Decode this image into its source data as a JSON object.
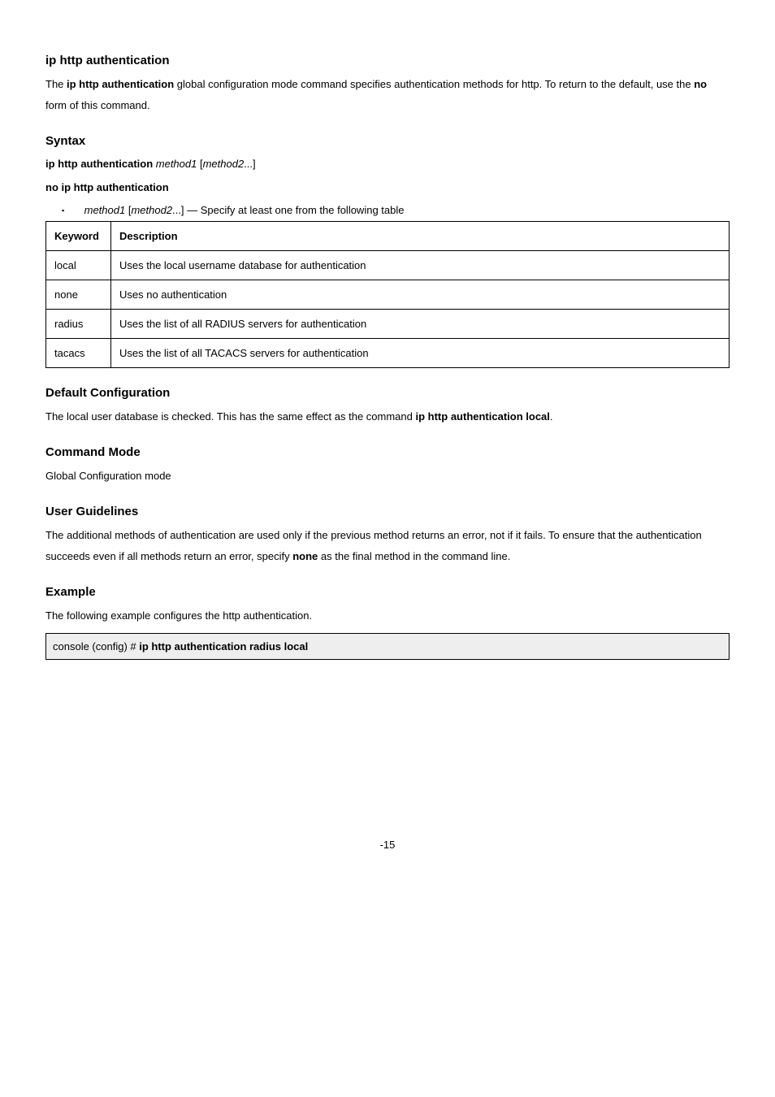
{
  "heading": "ip http authentication",
  "intro": {
    "pre1": "The ",
    "cmd": "ip http authentication",
    "post1": " global configuration mode command specifies authentication methods for http. To return to the default, use the ",
    "no": "no",
    "post2": " form of this command."
  },
  "sections": {
    "syntax": "Syntax",
    "default": "Default Configuration",
    "mode": "Command Mode",
    "guidelines": "User Guidelines",
    "example": "Example"
  },
  "syntax": {
    "line1_cmd": "ip http authentication ",
    "line1_arg1": "method1",
    "line1_open": " [",
    "line1_arg2": "method2",
    "line1_close": "...]",
    "line2": "no ip http authentication"
  },
  "param": {
    "arg1": "method1",
    "open": " [",
    "arg2": "method2",
    "close": "...] — Specify at least one from the following table"
  },
  "table": {
    "h1": "Keyword",
    "h2": "Description",
    "rows": [
      {
        "k": "local",
        "d": "Uses the local username database for authentication"
      },
      {
        "k": "none",
        "d": "Uses no authentication"
      },
      {
        "k": "radius",
        "d": "Uses the list of all RADIUS servers for authentication"
      },
      {
        "k": "tacacs",
        "d": "Uses the list of all TACACS servers for authentication"
      }
    ]
  },
  "default_cfg": {
    "pre": "The local user database is checked. This has the same effect as the command ",
    "cmd": "ip http authentication local",
    "post": "."
  },
  "mode_text": "Global Configuration mode",
  "guidelines": {
    "pre": "The additional methods of authentication are used only if the previous method returns an error, not if it fails. To ensure that the authentication succeeds even if all methods return an error, specify ",
    "kw": "none",
    "post": " as the final method in the command line."
  },
  "example": {
    "lead": "The following example configures the http authentication.",
    "prompt": "console (config) # ",
    "cmd": "ip http authentication radius local"
  },
  "page_number": "-15"
}
